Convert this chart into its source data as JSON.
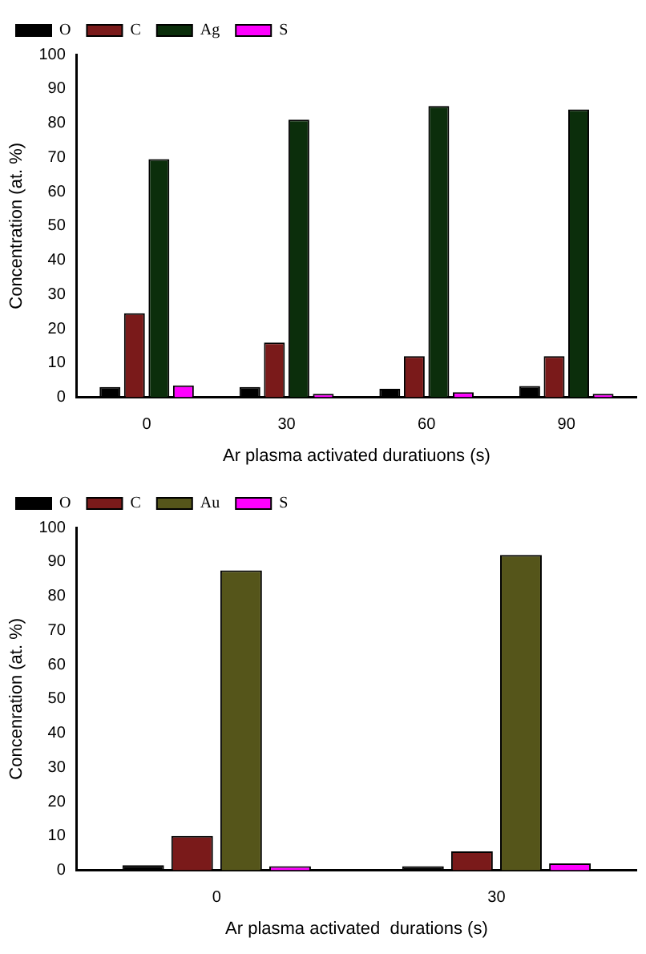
{
  "chart_data": [
    {
      "type": "bar",
      "xlabel": "Ar plasma activated duratiuons (s)",
      "ylabel": "Concentration (at. %)",
      "categories": [
        "0",
        "30",
        "60",
        "90"
      ],
      "series": [
        {
          "name": "O",
          "color": "#000000",
          "values": [
            3,
            3,
            2.5,
            3.3
          ]
        },
        {
          "name": "C",
          "color": "#7a1a1a",
          "values": [
            24.5,
            16,
            12,
            12
          ]
        },
        {
          "name": "Ag",
          "color": "#0b2e0b",
          "values": [
            69.5,
            81,
            85,
            84
          ]
        },
        {
          "name": "S",
          "color": "#ff00ff",
          "values": [
            3.5,
            1,
            1.5,
            1
          ]
        }
      ],
      "ylim": [
        0,
        100
      ],
      "yticks": [
        0,
        10,
        20,
        30,
        40,
        50,
        60,
        70,
        80,
        90,
        100
      ],
      "grid": false,
      "legend": "top left"
    },
    {
      "type": "bar",
      "xlabel": "Ar plasma activated  durations (s)",
      "ylabel": "Concenration (at. %)",
      "categories": [
        "0",
        "30"
      ],
      "series": [
        {
          "name": "O",
          "color": "#000000",
          "values": [
            1.5,
            1.2
          ]
        },
        {
          "name": "C",
          "color": "#7a1a1a",
          "values": [
            10,
            5.5
          ]
        },
        {
          "name": "Au",
          "color": "#55551a",
          "values": [
            87.5,
            92
          ]
        },
        {
          "name": "S",
          "color": "#ff00ff",
          "values": [
            1.2,
            2
          ]
        }
      ],
      "ylim": [
        0,
        100
      ],
      "yticks": [
        0,
        10,
        20,
        30,
        40,
        50,
        60,
        70,
        80,
        90,
        100
      ],
      "grid": false,
      "legend": "top left"
    }
  ]
}
